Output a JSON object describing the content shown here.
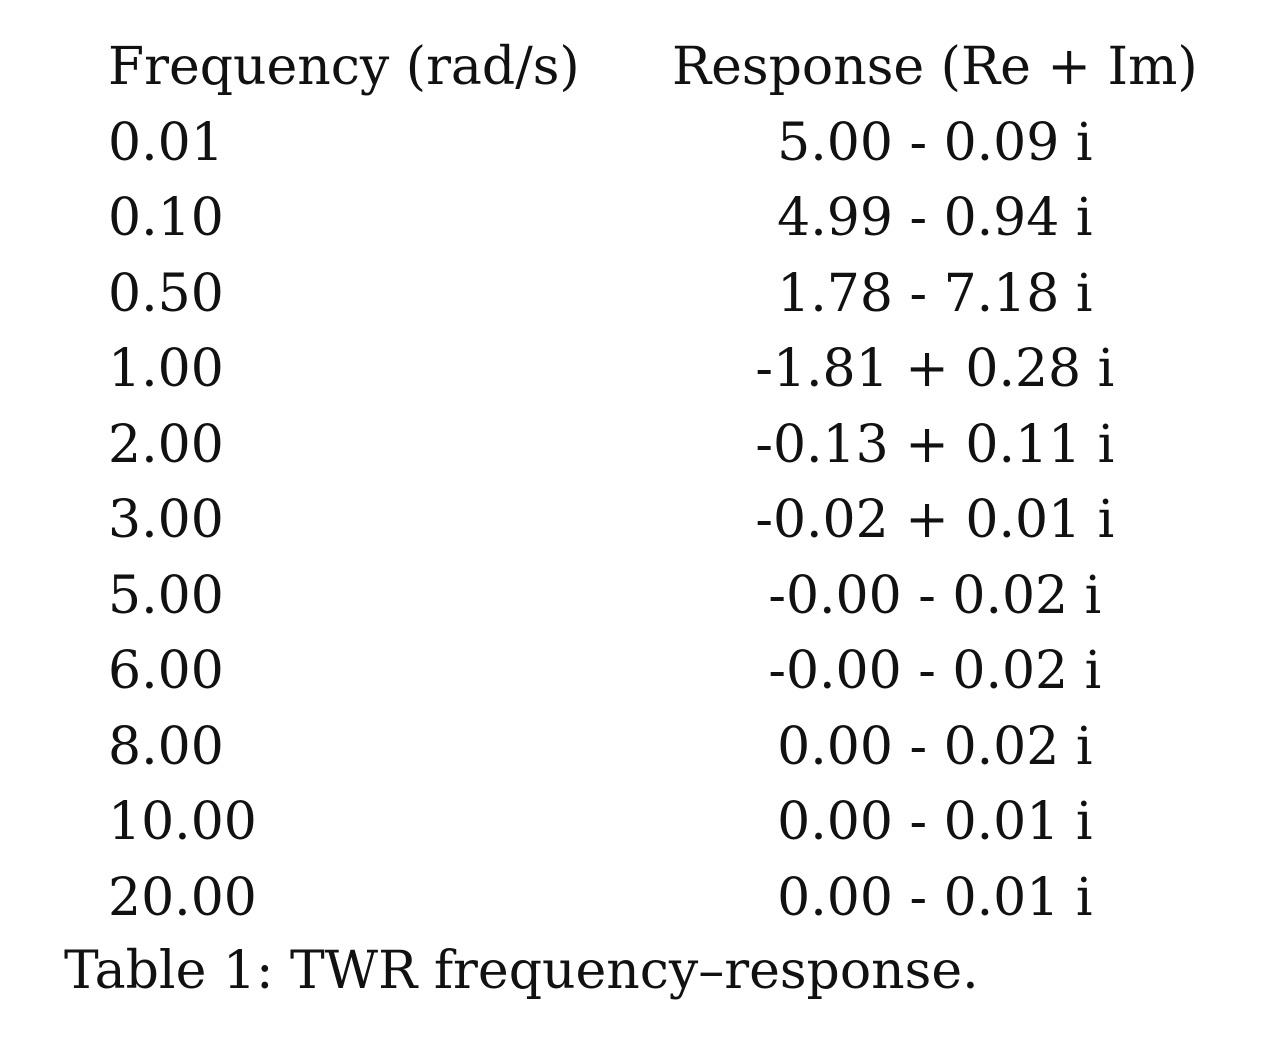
{
  "table": {
    "columns": [
      "Frequency (rad/s)",
      "Response (Re + Im)"
    ],
    "rows": [
      [
        "0.01",
        "5.00 - 0.09 i"
      ],
      [
        "0.10",
        "4.99 - 0.94 i"
      ],
      [
        "0.50",
        "1.78 - 7.18 i"
      ],
      [
        "1.00",
        "-1.81 + 0.28 i"
      ],
      [
        "2.00",
        "-0.13 + 0.11 i"
      ],
      [
        "3.00",
        "-0.02 + 0.01 i"
      ],
      [
        "5.00",
        "-0.00 - 0.02 i"
      ],
      [
        "6.00",
        "-0.00 - 0.02 i"
      ],
      [
        "8.00",
        "0.00 - 0.02 i"
      ],
      [
        "10.00",
        "0.00 - 0.01 i"
      ],
      [
        "20.00",
        "0.00 - 0.01 i"
      ]
    ]
  },
  "caption": "Table 1: TWR frequency–response."
}
